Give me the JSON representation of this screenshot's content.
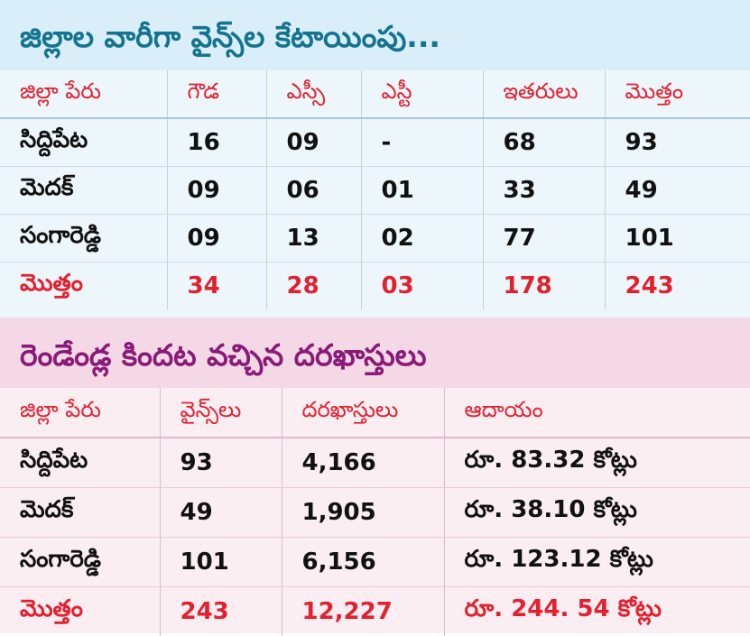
{
  "table1": {
    "title": "జిల్లాల వారీగా వైన్స్‌ల కేటాయింపు...",
    "headers": [
      "జిల్లా పేరు",
      "గౌడ",
      "ఎస్సీ",
      "ఎస్టీ",
      "ఇతరులు",
      "మొత్తం"
    ],
    "rows": [
      [
        "సిద్దిపేట",
        "16",
        "09",
        "-",
        "68",
        "93"
      ],
      [
        "మెదక్",
        "09",
        "06",
        "01",
        "33",
        "49"
      ],
      [
        "సంగారెడ్డి",
        "09",
        "13",
        "02",
        "77",
        "101"
      ]
    ],
    "total": [
      "మొత్తం",
      "34",
      "28",
      "03",
      "178",
      "243"
    ]
  },
  "table2": {
    "title": "రెండేండ్ల కిందట వచ్చిన దరఖాస్తులు",
    "headers": [
      "జిల్లా పేరు",
      "వైన్స్‌లు",
      "దరఖాస్తులు",
      "ఆదాయం"
    ],
    "rows": [
      [
        "సిద్దిపేట",
        "93",
        "4,166",
        "రూ. 83.32 కోట్లు"
      ],
      [
        "మెదక్",
        "49",
        "1,905",
        "రూ. 38.10 కోట్లు"
      ],
      [
        "సంగారెడ్డి",
        "101",
        "6,156",
        "రూ. 123.12 కోట్లు"
      ]
    ],
    "total": [
      "మొత్తం",
      "243",
      "12,227",
      "రూ. 244. 54 కోట్లు"
    ]
  },
  "colors": {
    "header_red": "#e1212f",
    "title1_teal": "#14748f",
    "title2_purple": "#8a1a78",
    "section1_bg": "#edf6fb",
    "section2_bg": "#fbeef3"
  }
}
